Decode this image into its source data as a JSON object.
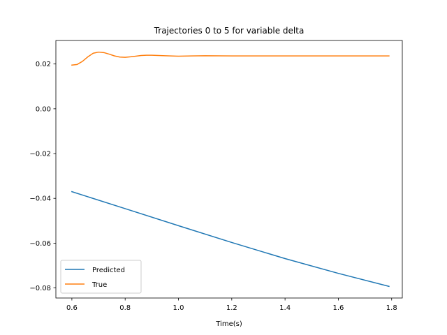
{
  "chart_data": {
    "type": "line",
    "title": "Trajectories 0 to 5 for variable delta",
    "xlabel": "Time(s)",
    "ylabel": "",
    "xlim": [
      0.54,
      1.84
    ],
    "ylim": [
      -0.0845,
      0.0305
    ],
    "xticks": [
      0.6,
      0.8,
      1.0,
      1.2,
      1.4,
      1.6,
      1.8
    ],
    "xtick_labels": [
      "0.6",
      "0.8",
      "1.0",
      "1.2",
      "1.4",
      "1.6",
      "1.8"
    ],
    "yticks": [
      -0.08,
      -0.06,
      -0.04,
      -0.02,
      0.0,
      0.02
    ],
    "ytick_labels": [
      "−0.08",
      "−0.06",
      "−0.04",
      "−0.02",
      "0.00",
      "0.02"
    ],
    "grid": false,
    "legend_position": "lower-left",
    "series": [
      {
        "name": "Predicted",
        "color": "#1f77b4",
        "x": [
          0.6,
          0.8,
          1.0,
          1.2,
          1.4,
          1.6,
          1.79
        ],
        "y": [
          -0.037,
          -0.0446,
          -0.0522,
          -0.0597,
          -0.0669,
          -0.0735,
          -0.0793
        ]
      },
      {
        "name": "True",
        "color": "#ff7f0e",
        "x": [
          0.6,
          0.62,
          0.64,
          0.66,
          0.68,
          0.7,
          0.72,
          0.74,
          0.76,
          0.78,
          0.8,
          0.82,
          0.84,
          0.86,
          0.88,
          0.9,
          0.95,
          1.0,
          1.05,
          1.1,
          1.2,
          1.4,
          1.6,
          1.79
        ],
        "y": [
          0.0195,
          0.0198,
          0.0212,
          0.0232,
          0.0248,
          0.0253,
          0.0251,
          0.0244,
          0.0236,
          0.0231,
          0.023,
          0.0232,
          0.0235,
          0.0238,
          0.0239,
          0.0239,
          0.0237,
          0.0235,
          0.0236,
          0.0237,
          0.0236,
          0.0236,
          0.0236,
          0.0236
        ]
      }
    ]
  }
}
